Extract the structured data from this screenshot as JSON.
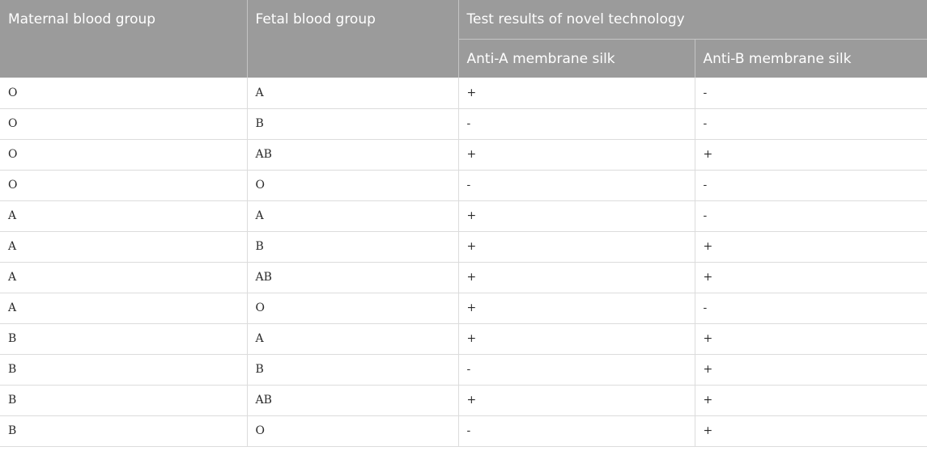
{
  "table": {
    "headers": {
      "maternal": "Maternal blood group",
      "fetal": "Fetal blood group",
      "test_results": "Test results of novel technology",
      "anti_a": "Anti-A membrane silk",
      "anti_b": "Anti-B membrane silk"
    },
    "rows": [
      [
        "O",
        "A",
        "+",
        "-"
      ],
      [
        "O",
        "B",
        "-",
        "-"
      ],
      [
        "O",
        "AB",
        "+",
        "+"
      ],
      [
        "O",
        "O",
        "-",
        "-"
      ],
      [
        "A",
        "A",
        "+",
        "-"
      ],
      [
        "A",
        "B",
        "+",
        "+"
      ],
      [
        "A",
        "AB",
        "+",
        "+"
      ],
      [
        "A",
        "O",
        "+",
        "-"
      ],
      [
        "B",
        "A",
        "+",
        "+"
      ],
      [
        "B",
        "B",
        "-",
        "+"
      ],
      [
        "B",
        "AB",
        "+",
        "+"
      ],
      [
        "B",
        "O",
        "-",
        "+"
      ]
    ]
  }
}
